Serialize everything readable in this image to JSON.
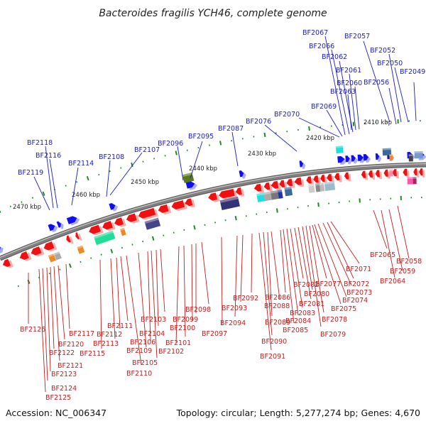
{
  "title": "Bacteroides fragilis YCH46, complete genome",
  "footer": {
    "accession": "Accession: NC_006347",
    "topology": "Topology: circular; Length: 5,277,274 bp; Genes: 4,670"
  },
  "colors": {
    "forward": "#1010ee",
    "reverse": "#ee1111",
    "backbone": "#808080",
    "tick": "#1e8c1e",
    "label_forward": "#1a1ac8",
    "label_reverse": "#c81a1a"
  },
  "kbp_labels": [
    "2410 kbp",
    "2420 kbp",
    "2430 kbp",
    "2440 kbp",
    "2450 kbp",
    "2460 kbp",
    "2470 kbp"
  ],
  "forward_labels": [
    "BF2049",
    "BF2050",
    "BF2052",
    "BF2056",
    "BF2057",
    "BF2060",
    "BF2061",
    "BF2062",
    "BF2063",
    "BF2066",
    "BF2067",
    "BF2069",
    "BF2070",
    "BF2076",
    "BF2087",
    "BF2095",
    "BF2096",
    "BF2107",
    "BF2108",
    "BF2114",
    "BF2116",
    "BF2118",
    "BF2119"
  ],
  "reverse_labels": [
    "BF2058",
    "BF2059",
    "BF2064",
    "BF2065",
    "BF2071",
    "BF2072",
    "BF2073",
    "BF2074",
    "BF2075",
    "BF2077",
    "BF2078",
    "BF2079",
    "BF2080",
    "BF2081",
    "BF2082",
    "BF2083",
    "BF2084",
    "BF2085",
    "BF2086",
    "BF2088",
    "BF2089",
    "BF2090",
    "BF2091",
    "BF2092",
    "BF2093",
    "BF2094",
    "BF2097",
    "BF2098",
    "BF2099",
    "BF2100",
    "BF2101",
    "BF2102",
    "BF2103",
    "BF2104",
    "BF2105",
    "BF2106",
    "BF2109",
    "BF2110",
    "BF2111",
    "BF2112",
    "BF2113",
    "BF2115",
    "BF2117",
    "BF2120",
    "BF2121",
    "BF2122",
    "BF2123",
    "BF2124",
    "BF2125",
    "BF2126"
  ]
}
